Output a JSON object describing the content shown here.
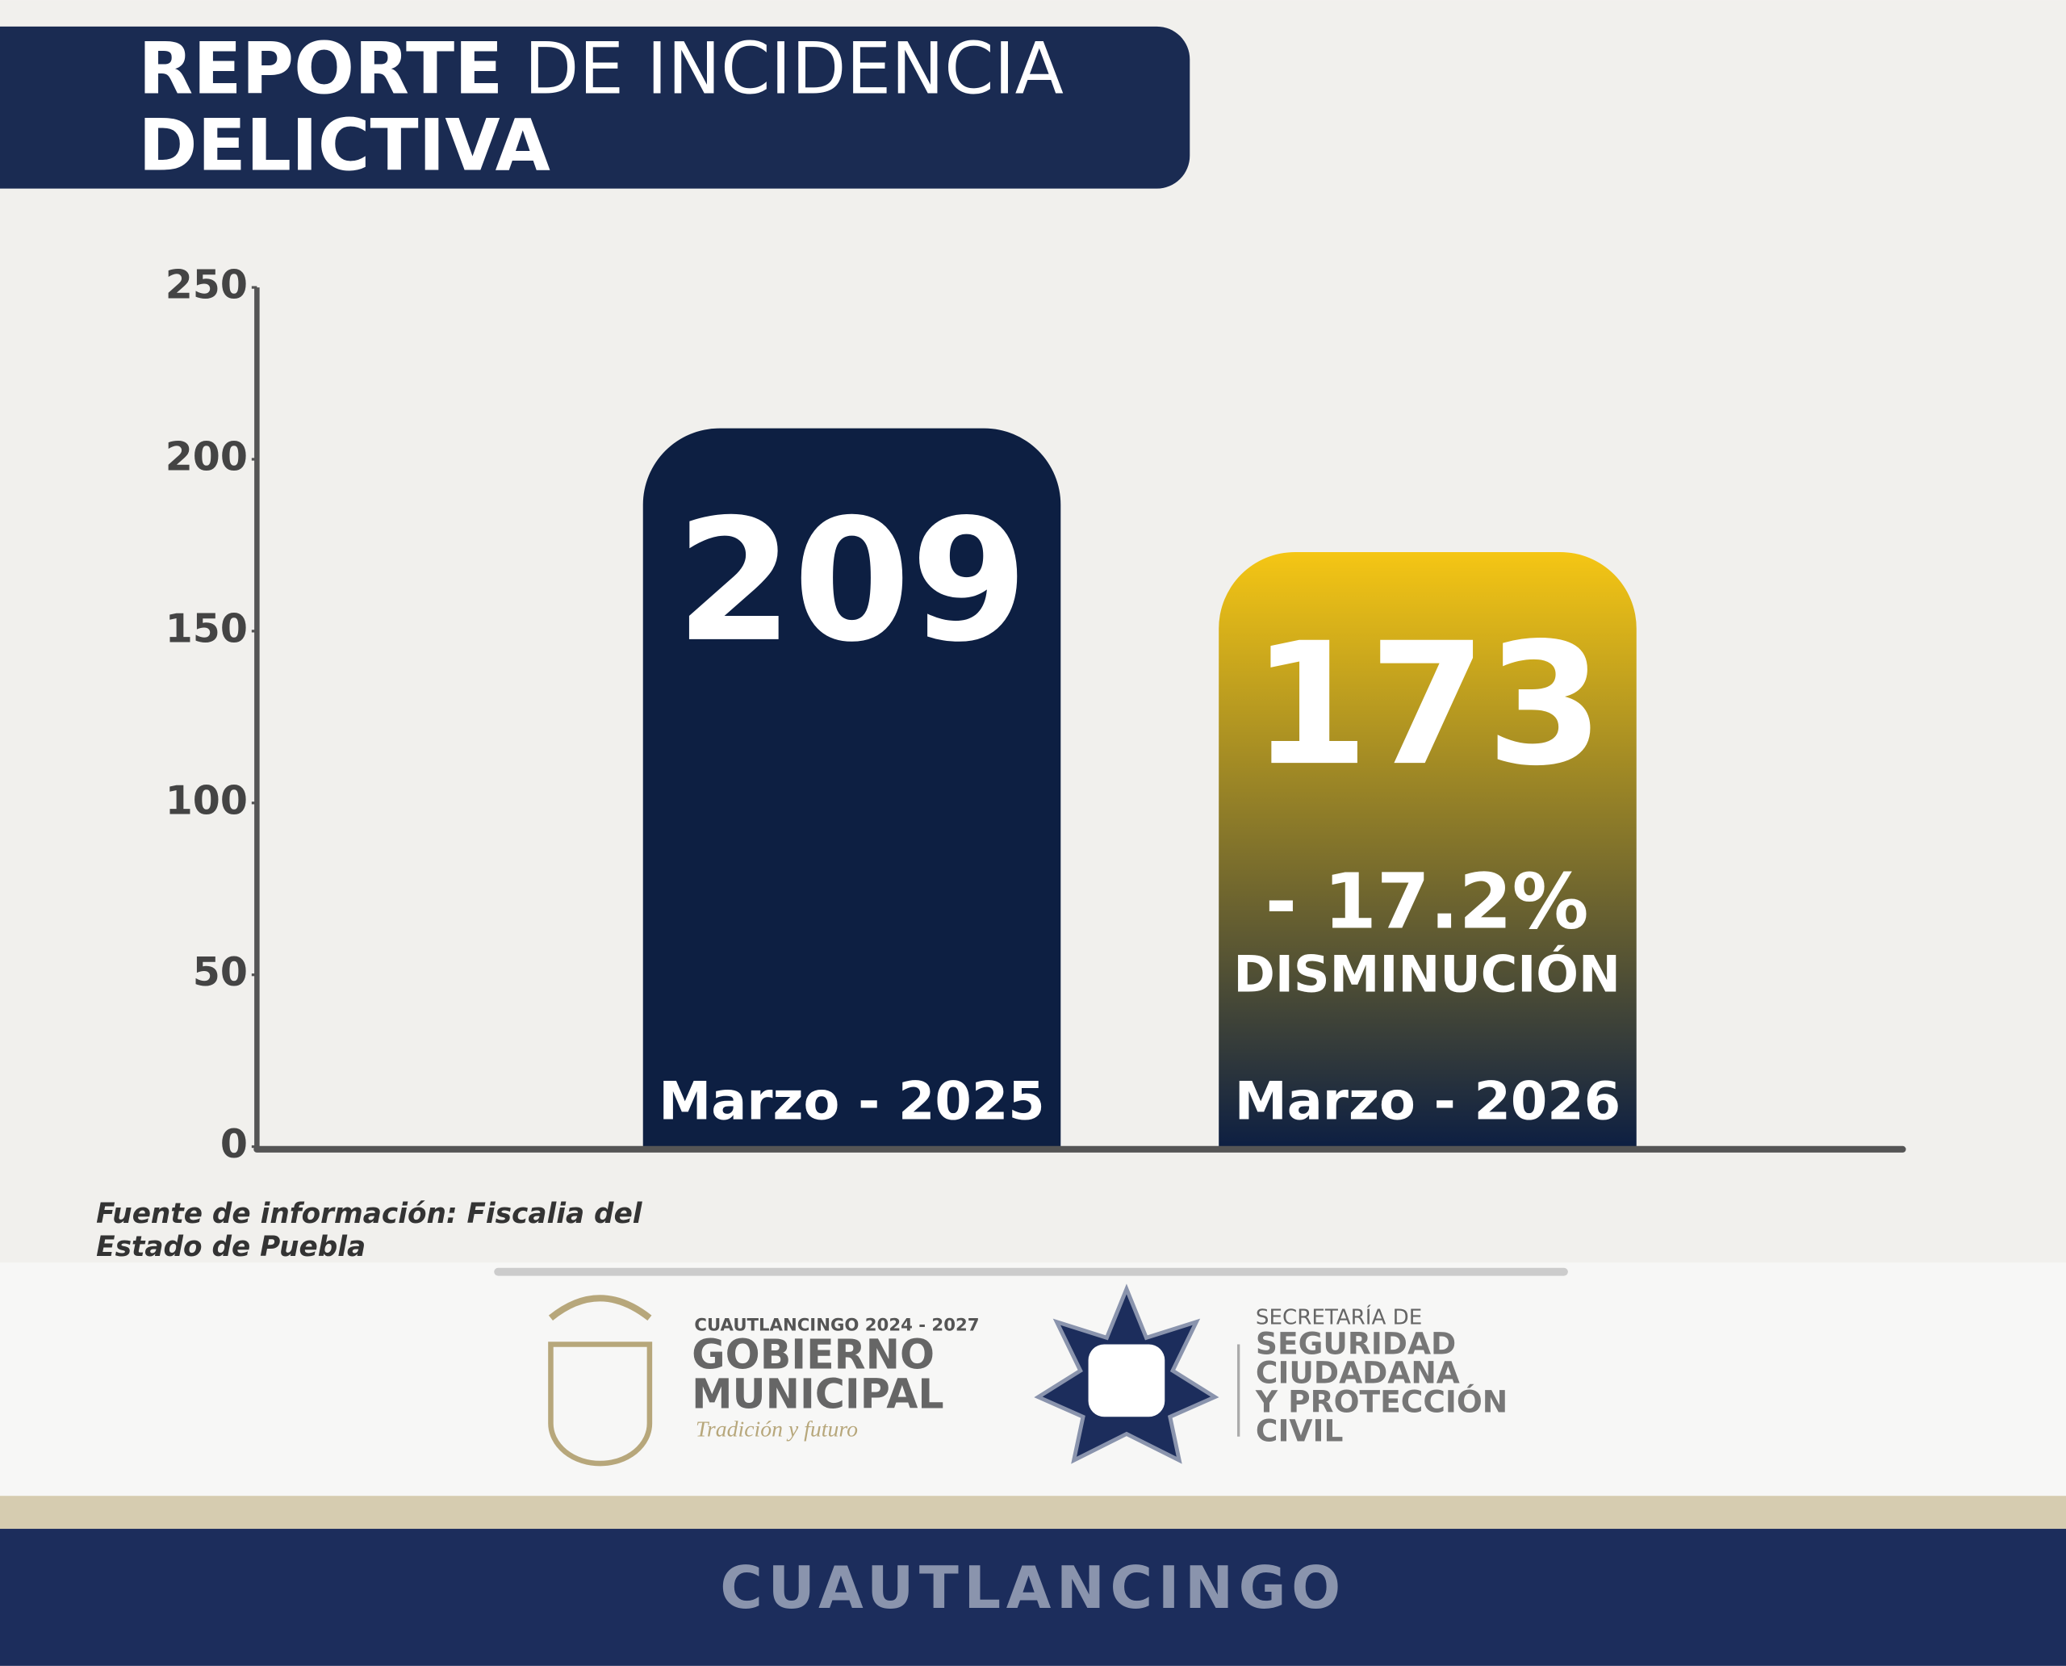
{
  "chart_data": {
    "type": "bar",
    "title": [
      "REPORTE",
      "DE INCIDENCIA",
      "DELICTIVA"
    ],
    "categories": [
      "Marzo - 2025",
      "Marzo - 2026"
    ],
    "values": [
      209,
      173
    ],
    "colors": [
      "#0d1f42",
      "#f5c614"
    ],
    "ylim": [
      0,
      250
    ],
    "yticks": [
      0,
      50,
      100,
      150,
      200,
      250
    ],
    "annotations": [
      "- 17.2%",
      "DISMINUCIÓN"
    ],
    "source": [
      "Fuente de información: Fiscalia del",
      "Estado de Puebla"
    ]
  },
  "footer": {
    "municipio": "CUAUTLANCINGO 2024 - 2027",
    "gobierno": [
      "GOBIERNO",
      "MUNICIPAL"
    ],
    "lema": "Tradición y futuro",
    "secretaria": [
      "SECRETARÍA DE",
      "SEGURIDAD",
      "CIUDADANA",
      "Y PROTECCIÓN",
      "CIVIL"
    ],
    "banner": "CUAUTLANCINGO"
  }
}
